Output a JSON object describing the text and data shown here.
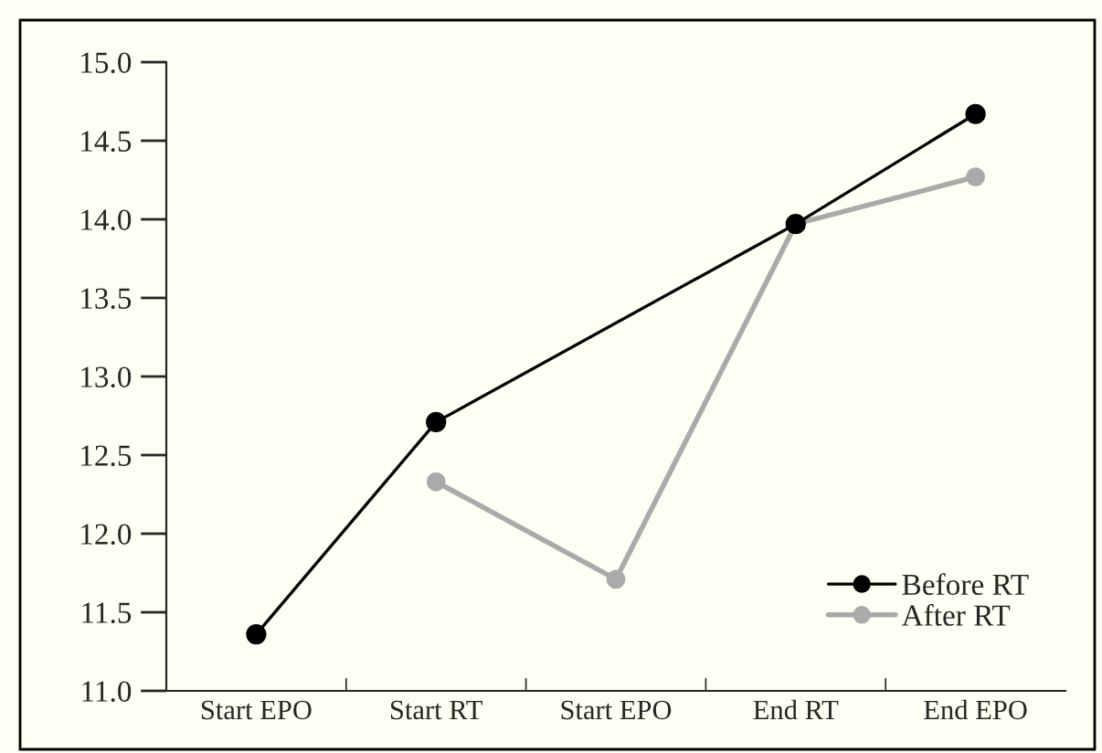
{
  "chart_data": {
    "type": "line",
    "categories": [
      "Start EPO",
      "Start RT",
      "Start EPO",
      "End RT",
      "End EPO"
    ],
    "series": [
      {
        "name": "Before RT",
        "color": "#000000",
        "values": [
          11.36,
          12.71,
          null,
          13.97,
          14.67
        ]
      },
      {
        "name": "After RT",
        "color": "#aaaaaa",
        "values": [
          null,
          12.33,
          11.71,
          13.97,
          14.27
        ]
      }
    ],
    "ylim": [
      11.0,
      15.0
    ],
    "yticks": [
      {
        "value": 11,
        "label": "11.0"
      },
      {
        "value": 11.5,
        "label": "11.5"
      },
      {
        "value": 12,
        "label": "12.0"
      },
      {
        "value": 12.5,
        "label": "12.5"
      },
      {
        "value": 13,
        "label": "13.0"
      },
      {
        "value": 13.5,
        "label": "13.5"
      },
      {
        "value": 14,
        "label": "14.0"
      },
      {
        "value": 14.5,
        "label": "14.5"
      },
      {
        "value": 15,
        "label": "15.0"
      }
    ],
    "grid": false,
    "legend": "bottom right",
    "marker": "circle",
    "line_style": "solid"
  }
}
